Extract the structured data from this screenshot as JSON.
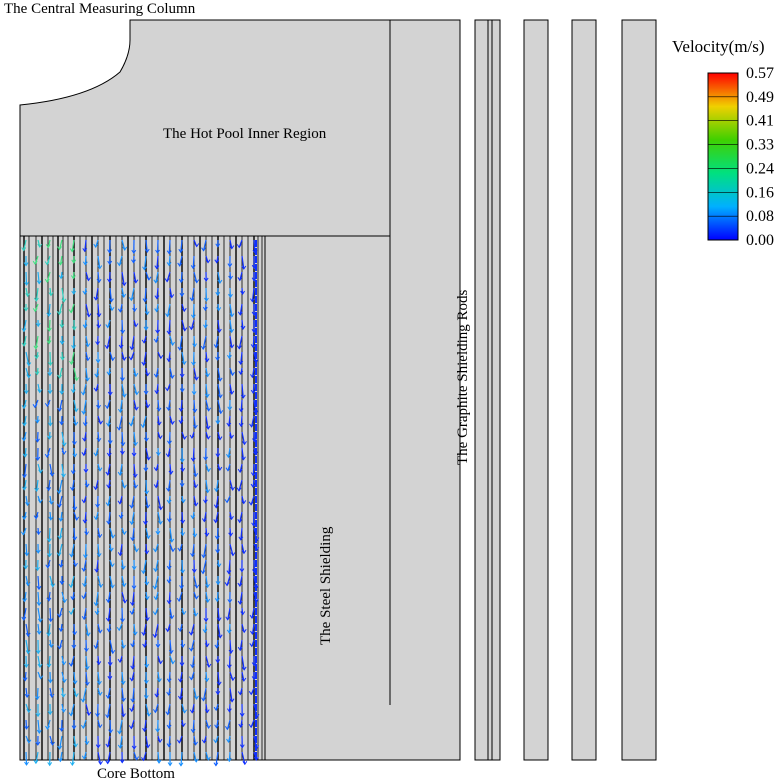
{
  "labels": {
    "central_column": "The Central Measuring Column",
    "hot_pool": "The Hot Pool Inner Region",
    "graphite_rods": "The Graphite Shielding Rods",
    "steel_shielding": "The Steel Shielding",
    "core_bottom": "Core Bottom"
  },
  "colorbar": {
    "title": "Velocity(m/s)",
    "labels": [
      "0.57",
      "0.49",
      "0.41",
      "0.33",
      "0.24",
      "0.16",
      "0.08",
      "0.00"
    ]
  }
}
